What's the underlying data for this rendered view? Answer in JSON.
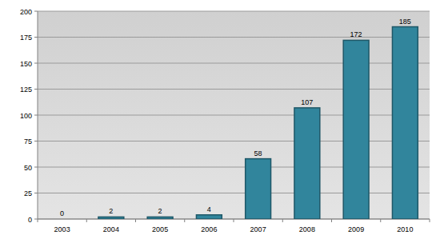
{
  "chart_data": {
    "type": "bar",
    "categories": [
      "2003",
      "2004",
      "2005",
      "2006",
      "2007",
      "2008",
      "2009",
      "2010"
    ],
    "values": [
      0,
      2,
      2,
      4,
      58,
      107,
      172,
      185
    ],
    "color": "#31859c",
    "ylim": [
      0,
      200
    ],
    "yticks": [
      0,
      25,
      50,
      75,
      100,
      125,
      150,
      175,
      200
    ],
    "grid": true,
    "data_labels": true
  }
}
